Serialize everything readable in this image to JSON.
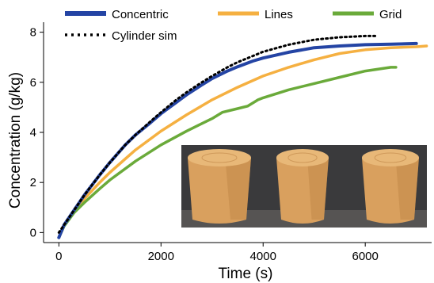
{
  "chart_data": {
    "type": "line",
    "xlabel": "Time (s)",
    "ylabel": "Concentration (g/kg)",
    "xlim": [
      -300,
      7300
    ],
    "ylim": [
      -0.4,
      8.4
    ],
    "xticks": [
      0,
      2000,
      4000,
      6000
    ],
    "yticks": [
      0,
      2,
      4,
      6,
      8
    ],
    "grid": false,
    "legend_position": "top",
    "series": [
      {
        "name": "Concentric",
        "color": "#2444a4",
        "style": "solid",
        "x": [
          0,
          100,
          300,
          500,
          800,
          1000,
          1300,
          1500,
          1800,
          2000,
          2300,
          2500,
          2800,
          3000,
          3300,
          3500,
          3800,
          4000,
          4500,
          5000,
          5500,
          6000,
          6500,
          7000
        ],
        "y": [
          -0.2,
          0.3,
          0.9,
          1.5,
          2.3,
          2.8,
          3.5,
          3.9,
          4.4,
          4.75,
          5.2,
          5.5,
          5.9,
          6.15,
          6.45,
          6.62,
          6.85,
          6.97,
          7.2,
          7.38,
          7.45,
          7.5,
          7.52,
          7.55
        ]
      },
      {
        "name": "Lines",
        "color": "#f5b041",
        "style": "solid",
        "x": [
          0,
          100,
          300,
          500,
          800,
          1000,
          1500,
          2000,
          2500,
          3000,
          3500,
          4000,
          4500,
          5000,
          5500,
          6000,
          6500,
          7000,
          7200
        ],
        "y": [
          -0.2,
          0.3,
          0.85,
          1.35,
          2.0,
          2.4,
          3.3,
          4.05,
          4.7,
          5.3,
          5.8,
          6.25,
          6.6,
          6.9,
          7.15,
          7.3,
          7.38,
          7.42,
          7.45
        ]
      },
      {
        "name": "Grid",
        "color": "#6aaa3a",
        "style": "solid",
        "x": [
          0,
          100,
          300,
          500,
          800,
          1000,
          1500,
          2000,
          2500,
          3000,
          3200,
          3500,
          3700,
          3900,
          4000,
          4500,
          5000,
          5500,
          6000,
          6500,
          6600
        ],
        "y": [
          -0.2,
          0.25,
          0.8,
          1.2,
          1.75,
          2.1,
          2.85,
          3.5,
          4.05,
          4.55,
          4.8,
          4.95,
          5.05,
          5.3,
          5.38,
          5.7,
          5.95,
          6.2,
          6.45,
          6.6,
          6.6
        ]
      },
      {
        "name": "Cylinder sim",
        "color": "#000000",
        "style": "dotted",
        "x": [
          0,
          300,
          500,
          800,
          1000,
          1300,
          1500,
          1800,
          2000,
          2300,
          2500,
          2800,
          3000,
          3300,
          3500,
          3800,
          4000,
          4500,
          5000,
          5500,
          6000,
          6200
        ],
        "y": [
          0.0,
          0.9,
          1.5,
          2.3,
          2.8,
          3.5,
          3.9,
          4.45,
          4.8,
          5.3,
          5.6,
          6.0,
          6.25,
          6.6,
          6.8,
          7.05,
          7.22,
          7.5,
          7.7,
          7.8,
          7.85,
          7.85
        ]
      }
    ],
    "inset_photo": {
      "description_colors": {
        "background": "#3a3a3c",
        "sample": "#d9a05e",
        "sample_dark": "#b57a3c",
        "table": "#6e6a66"
      }
    }
  }
}
